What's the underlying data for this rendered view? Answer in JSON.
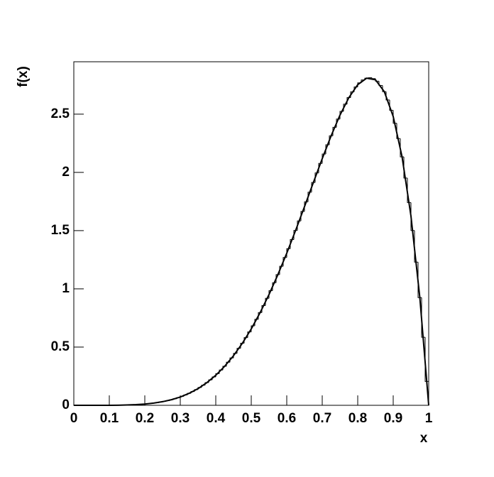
{
  "chart_data": {
    "type": "histogram",
    "x_label": "x",
    "y_label": "f(x)",
    "color": "#000000",
    "bins": [
      0,
      0.01,
      0.02,
      0.03,
      0.04,
      0.05,
      0.06,
      0.07,
      0.08,
      0.09,
      0.1,
      0.11,
      0.12,
      0.13,
      0.14,
      0.15,
      0.16,
      0.17,
      0.18,
      0.19,
      0.2,
      0.21,
      0.22,
      0.23,
      0.24,
      0.25,
      0.26,
      0.27,
      0.28,
      0.29,
      0.3,
      0.31,
      0.32,
      0.33,
      0.34,
      0.35,
      0.36,
      0.37,
      0.38,
      0.39,
      0.4,
      0.41,
      0.42,
      0.43,
      0.44,
      0.45,
      0.46,
      0.47,
      0.48,
      0.49,
      0.5,
      0.51,
      0.52,
      0.53,
      0.54,
      0.55,
      0.56,
      0.57,
      0.58,
      0.59,
      0.6,
      0.61,
      0.62,
      0.63,
      0.64,
      0.65,
      0.66,
      0.67,
      0.68,
      0.69,
      0.7,
      0.71,
      0.72,
      0.73,
      0.74,
      0.75,
      0.76,
      0.77,
      0.78,
      0.79,
      0.8,
      0.81,
      0.82,
      0.83,
      0.84,
      0.85,
      0.86,
      0.87,
      0.88,
      0.89,
      0.9,
      0.91,
      0.92,
      0.93,
      0.94,
      0.95,
      0.96,
      0.97,
      0.98,
      0.99,
      1
    ],
    "values": [
      0,
      0,
      0,
      0,
      0,
      0,
      0,
      0,
      0,
      0,
      0,
      0.001,
      0.001,
      0.002,
      0.002,
      0.003,
      0.004,
      0.006,
      0.007,
      0.01,
      0.012,
      0.015,
      0.019,
      0.023,
      0.028,
      0.034,
      0.04,
      0.048,
      0.056,
      0.066,
      0.077,
      0.089,
      0.103,
      0.118,
      0.135,
      0.153,
      0.173,
      0.195,
      0.219,
      0.244,
      0.272,
      0.303,
      0.335,
      0.37,
      0.407,
      0.446,
      0.489,
      0.533,
      0.581,
      0.63,
      0.683,
      0.738,
      0.796,
      0.856,
      0.919,
      0.984,
      1.052,
      1.122,
      1.194,
      1.269,
      1.345,
      1.423,
      1.502,
      1.583,
      1.665,
      1.747,
      1.83,
      1.913,
      1.995,
      2.077,
      2.158,
      2.237,
      2.314,
      2.387,
      2.458,
      2.524,
      2.586,
      2.642,
      2.692,
      2.734,
      2.769,
      2.794,
      2.809,
      2.813,
      2.805,
      2.783,
      2.746,
      2.693,
      2.622,
      2.533,
      2.422,
      2.29,
      2.133,
      1.951,
      1.741,
      1.501,
      1.23,
      0.925,
      0.584,
      0.205
    ],
    "curve": {
      "type": "line",
      "color": "#000000",
      "x": [
        0,
        0.025,
        0.05,
        0.075,
        0.1,
        0.125,
        0.15,
        0.175,
        0.2,
        0.225,
        0.25,
        0.275,
        0.3,
        0.325,
        0.35,
        0.375,
        0.4,
        0.425,
        0.45,
        0.475,
        0.5,
        0.525,
        0.55,
        0.575,
        0.6,
        0.625,
        0.65,
        0.675,
        0.7,
        0.725,
        0.75,
        0.775,
        0.8,
        0.825,
        0.85,
        0.875,
        0.9,
        0.925,
        0.95,
        0.975,
        1
      ],
      "values": [
        0,
        0,
        0,
        0,
        0,
        0.001,
        0.003,
        0.006,
        0.011,
        0.019,
        0.031,
        0.048,
        0.071,
        0.103,
        0.143,
        0.195,
        0.258,
        0.335,
        0.426,
        0.533,
        0.656,
        0.796,
        0.951,
        1.122,
        1.306,
        1.502,
        1.706,
        1.913,
        2.118,
        2.314,
        2.492,
        2.642,
        2.753,
        2.809,
        2.795,
        2.693,
        2.48,
        2.133,
        1.625,
        0.925,
        0
      ]
    },
    "xlim": [
      0,
      1
    ],
    "ylim": [
      0,
      2.95
    ],
    "xticks": [
      0,
      0.1,
      0.2,
      0.3,
      0.4,
      0.5,
      0.6,
      0.7,
      0.8,
      0.9,
      1
    ],
    "yticks": [
      0,
      0.5,
      1,
      1.5,
      2,
      2.5
    ]
  }
}
